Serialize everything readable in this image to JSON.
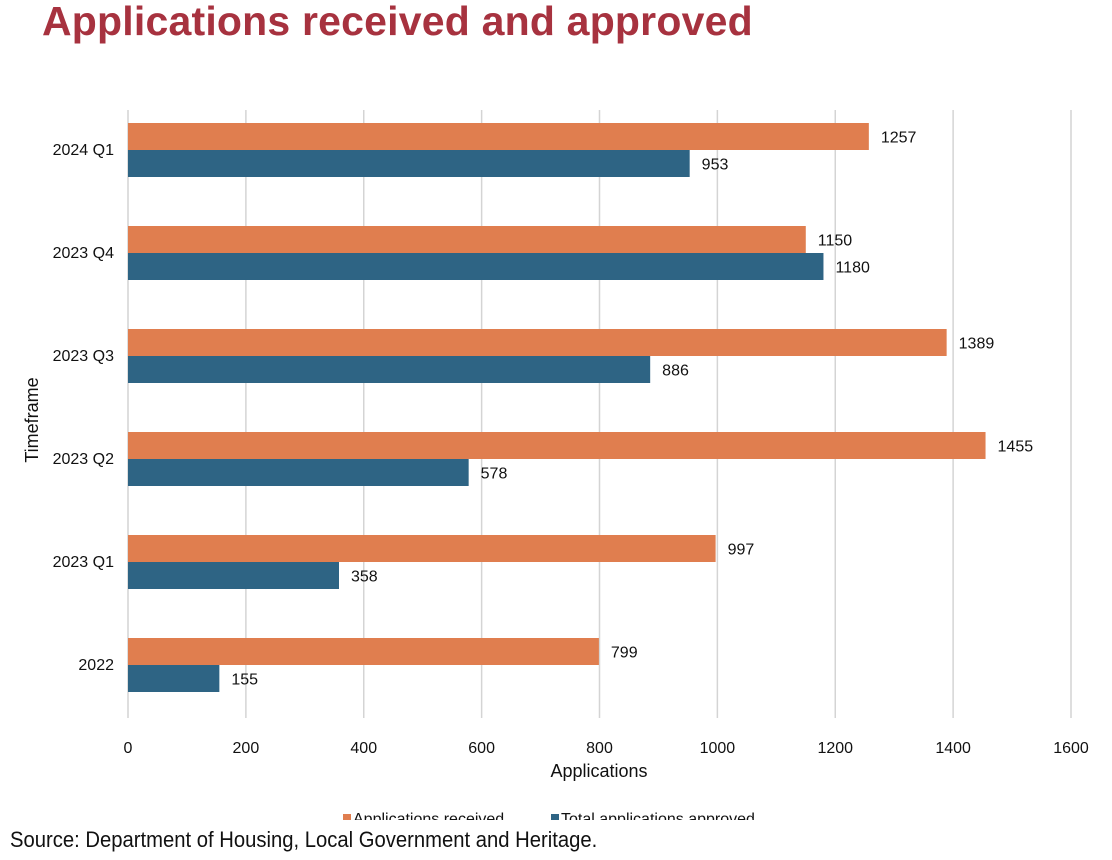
{
  "title": "Applications received and approved",
  "source": "Source: Department of Housing, Local Government and Heritage.",
  "colors": {
    "title": "#a7323f",
    "received": "#e07e4f",
    "approved": "#2e6484",
    "grid": "#d4d4d4"
  },
  "chart_data": {
    "type": "bar",
    "orientation": "horizontal",
    "title": "Applications received and approved",
    "xlabel": "Applications",
    "ylabel": "Timeframe",
    "xlim": [
      0,
      1600
    ],
    "xticks": [
      0,
      200,
      400,
      600,
      800,
      1000,
      1200,
      1400,
      1600
    ],
    "grid": true,
    "legend_position": "bottom",
    "categories": [
      "2024 Q1",
      "2023 Q4",
      "2023 Q3",
      "2023 Q2",
      "2023 Q1",
      "2022"
    ],
    "series": [
      {
        "name": "Applications received",
        "values": [
          1257,
          1150,
          1389,
          1455,
          997,
          799
        ]
      },
      {
        "name": "Total applications approved",
        "values": [
          953,
          1180,
          886,
          578,
          358,
          155
        ]
      }
    ]
  }
}
